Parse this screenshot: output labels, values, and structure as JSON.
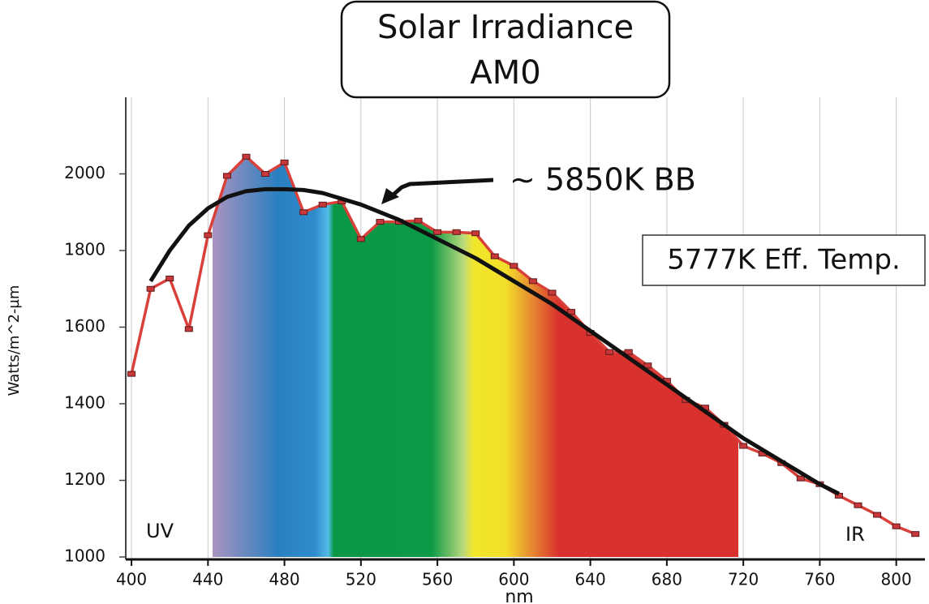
{
  "chart_data": {
    "type": "line",
    "title": [
      "Solar Irradiance",
      "AM0"
    ],
    "x_label": "nm",
    "y_label": "Watts/m^2-µm",
    "annotations": [
      "∼ 5850K BB",
      "5777K Eff. Temp.",
      "UV",
      "IR"
    ],
    "xlim": [
      397,
      815
    ],
    "ylim": [
      1000,
      2200
    ],
    "xticks": [
      400,
      440,
      480,
      520,
      560,
      600,
      640,
      680,
      720,
      760,
      800
    ],
    "yticks": [
      1000,
      1200,
      1400,
      1600,
      1800,
      2000
    ],
    "grid": true,
    "series": [
      {
        "color": "#d9403a",
        "x": [
          400,
          410,
          420,
          430,
          440,
          450,
          460,
          470,
          480,
          490,
          500,
          510,
          520,
          530,
          540,
          550,
          560,
          570,
          580,
          590,
          600,
          610,
          620,
          630,
          640,
          650,
          660,
          670,
          680,
          690,
          700,
          710,
          720,
          730,
          740,
          750,
          760,
          770,
          780,
          790,
          800,
          810
        ],
        "values": [
          1478,
          1700,
          1727,
          1595,
          1840,
          1995,
          2045,
          2000,
          2030,
          1900,
          1920,
          1928,
          1830,
          1875,
          1875,
          1878,
          1848,
          1848,
          1845,
          1785,
          1760,
          1720,
          1690,
          1640,
          1585,
          1535,
          1535,
          1500,
          1460,
          1410,
          1390,
          1345,
          1290,
          1270,
          1245,
          1205,
          1190,
          1160,
          1135,
          1110,
          1080,
          1060
        ]
      },
      {
        "color": "#111111",
        "x": [
          410,
          420,
          430,
          440,
          450,
          460,
          470,
          480,
          490,
          500,
          520,
          540,
          560,
          580,
          600,
          620,
          640,
          660,
          680,
          700,
          720,
          740,
          760,
          770
        ],
        "values": [
          1720,
          1800,
          1865,
          1910,
          1940,
          1955,
          1960,
          1960,
          1958,
          1950,
          1920,
          1880,
          1830,
          1780,
          1720,
          1660,
          1590,
          1520,
          1450,
          1380,
          1310,
          1250,
          1190,
          1165
        ]
      }
    ]
  }
}
